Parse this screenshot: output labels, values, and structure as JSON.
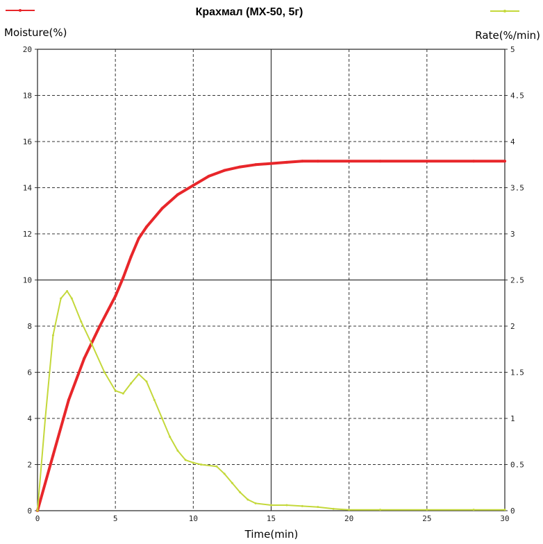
{
  "chart_data": {
    "type": "line",
    "title": "Крахмал (MX-50, 5г)",
    "xlabel": "Time(min)",
    "ylabel_left": "Moisture(%)",
    "ylabel_right": "Rate(%/min)",
    "xlim": [
      0,
      30
    ],
    "ylim_left": [
      0,
      20
    ],
    "ylim_right": [
      0,
      5
    ],
    "x_ticks": [
      "0",
      "5",
      "10",
      "15",
      "20",
      "25",
      "30"
    ],
    "y_left_ticks": [
      "0",
      "2",
      "4",
      "6",
      "8",
      "10",
      "12",
      "14",
      "16",
      "18",
      "20"
    ],
    "y_right_ticks": [
      "0",
      "0.5",
      "1",
      "1.5",
      "2",
      "2.5",
      "3",
      "3.5",
      "4",
      "4.5",
      "5"
    ],
    "grid": true,
    "legend_placement": "top-left (moisture) / top-right (rate)",
    "series": [
      {
        "axis": "left",
        "color": "#e8262a",
        "x": [
          0,
          1,
          2,
          3,
          4,
          5,
          5.5,
          6,
          6.5,
          7,
          8,
          9,
          10,
          11,
          12,
          13,
          14,
          15,
          16,
          17,
          18,
          20,
          22,
          25,
          28,
          30
        ],
        "values": [
          0,
          2.4,
          4.8,
          6.6,
          8.0,
          9.3,
          10.1,
          11.0,
          11.8,
          12.3,
          13.1,
          13.7,
          14.1,
          14.5,
          14.75,
          14.9,
          15.0,
          15.05,
          15.1,
          15.15,
          15.15,
          15.15,
          15.15,
          15.15,
          15.15,
          15.15
        ]
      },
      {
        "axis": "right",
        "color": "#c4d83a",
        "x": [
          0,
          0.5,
          1.0,
          1.5,
          1.9,
          2.2,
          2.8,
          3.5,
          4.3,
          5.0,
          5.5,
          6.0,
          6.5,
          7.0,
          7.5,
          8.0,
          8.5,
          9.0,
          9.5,
          10.0,
          10.5,
          11.5,
          12.0,
          12.5,
          13.0,
          13.5,
          14.0,
          15.0,
          16.0,
          17.0,
          18.0,
          19.0,
          20.0,
          22.0,
          25.0,
          28.0,
          30.0
        ],
        "values": [
          0,
          1.0,
          1.9,
          2.3,
          2.38,
          2.3,
          2.05,
          1.8,
          1.5,
          1.3,
          1.27,
          1.38,
          1.48,
          1.4,
          1.2,
          1.0,
          0.8,
          0.65,
          0.55,
          0.52,
          0.5,
          0.48,
          0.4,
          0.3,
          0.2,
          0.12,
          0.08,
          0.06,
          0.06,
          0.05,
          0.04,
          0.02,
          0.01,
          0.01,
          0.01,
          0.01,
          0.01
        ]
      }
    ]
  }
}
